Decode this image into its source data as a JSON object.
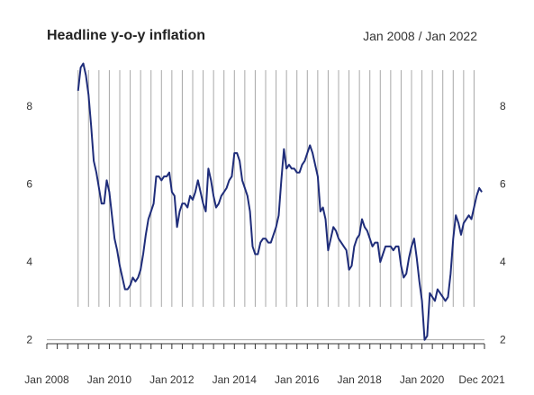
{
  "chart_data": {
    "type": "line",
    "title": "Headline y-o-y inflation",
    "subtitle": "Jan 2008 / Jan 2022",
    "xlabel": "",
    "ylabel": "",
    "x_tick_labels": [
      "Jan 2008",
      "Jan 2010",
      "Jan 2012",
      "Jan 2014",
      "Jan 2016",
      "Jan 2018",
      "Jan 2020",
      "Dec 2021"
    ],
    "x_tick_dates": [
      "2008-01",
      "2010-01",
      "2012-01",
      "2014-01",
      "2016-01",
      "2018-01",
      "2020-01",
      "2021-12"
    ],
    "xlim": [
      "2008-01",
      "2022-01"
    ],
    "ylim": [
      1.9,
      9.3
    ],
    "yticks": [
      2,
      4,
      6,
      8
    ],
    "y_tick_labels": [
      "2",
      "4",
      "6",
      "8"
    ],
    "right_axis_ticks": true,
    "grid": "vertical lines at monthly intervals from Jan 2009, horizontal line at 2",
    "line_color": "#1f2d7a",
    "series": [
      {
        "x": [
          "2009-01",
          "2009-02",
          "2009-03",
          "2009-04",
          "2009-05",
          "2009-06",
          "2009-07",
          "2009-08",
          "2009-09",
          "2009-10",
          "2009-11",
          "2009-12",
          "2010-01",
          "2010-02",
          "2010-03",
          "2010-04",
          "2010-05",
          "2010-06",
          "2010-07",
          "2010-08",
          "2010-09",
          "2010-10",
          "2010-11",
          "2010-12",
          "2011-01",
          "2011-02",
          "2011-03",
          "2011-04",
          "2011-05",
          "2011-06",
          "2011-07",
          "2011-08",
          "2011-09",
          "2011-10",
          "2011-11",
          "2011-12",
          "2012-01",
          "2012-02",
          "2012-03",
          "2012-04",
          "2012-05",
          "2012-06",
          "2012-07",
          "2012-08",
          "2012-09",
          "2012-10",
          "2012-11",
          "2012-12",
          "2013-01",
          "2013-02",
          "2013-03",
          "2013-04",
          "2013-05",
          "2013-06",
          "2013-07",
          "2013-08",
          "2013-09",
          "2013-10",
          "2013-11",
          "2013-12",
          "2014-01",
          "2014-02",
          "2014-03",
          "2014-04",
          "2014-05",
          "2014-06",
          "2014-07",
          "2014-08",
          "2014-09",
          "2014-10",
          "2014-11",
          "2014-12",
          "2015-01",
          "2015-02",
          "2015-03",
          "2015-04",
          "2015-05",
          "2015-06",
          "2015-07",
          "2015-08",
          "2015-09",
          "2015-10",
          "2015-11",
          "2015-12",
          "2016-01",
          "2016-02",
          "2016-03",
          "2016-04",
          "2016-05",
          "2016-06",
          "2016-07",
          "2016-08",
          "2016-09",
          "2016-10",
          "2016-11",
          "2016-12",
          "2017-01",
          "2017-02",
          "2017-03",
          "2017-04",
          "2017-05",
          "2017-06",
          "2017-07",
          "2017-08",
          "2017-09",
          "2017-10",
          "2017-11",
          "2017-12",
          "2018-01",
          "2018-02",
          "2018-03",
          "2018-04",
          "2018-05",
          "2018-06",
          "2018-07",
          "2018-08",
          "2018-09",
          "2018-10",
          "2018-11",
          "2018-12",
          "2019-01",
          "2019-02",
          "2019-03",
          "2019-04",
          "2019-05",
          "2019-06",
          "2019-07",
          "2019-08",
          "2019-09",
          "2019-10",
          "2019-11",
          "2019-12",
          "2020-01",
          "2020-02",
          "2020-03",
          "2020-04",
          "2020-05",
          "2020-06",
          "2020-07",
          "2020-08",
          "2020-09",
          "2020-10",
          "2020-11",
          "2020-12",
          "2021-01",
          "2021-02",
          "2021-03",
          "2021-04",
          "2021-05",
          "2021-06",
          "2021-07",
          "2021-08",
          "2021-09",
          "2021-10",
          "2021-11",
          "2021-12"
        ],
        "values": [
          8.4,
          9.0,
          9.1,
          8.8,
          8.3,
          7.5,
          6.6,
          6.3,
          5.9,
          5.5,
          5.5,
          6.1,
          5.8,
          5.2,
          4.6,
          4.3,
          3.9,
          3.6,
          3.3,
          3.3,
          3.4,
          3.6,
          3.5,
          3.6,
          3.8,
          4.2,
          4.7,
          5.1,
          5.3,
          5.5,
          6.2,
          6.2,
          6.1,
          6.2,
          6.2,
          6.3,
          5.8,
          5.7,
          4.9,
          5.3,
          5.5,
          5.5,
          5.4,
          5.7,
          5.6,
          5.8,
          6.1,
          5.8,
          5.5,
          5.3,
          6.4,
          6.1,
          5.7,
          5.4,
          5.5,
          5.7,
          5.8,
          5.9,
          6.1,
          6.2,
          6.8,
          6.8,
          6.6,
          6.1,
          5.9,
          5.7,
          5.3,
          4.4,
          4.2,
          4.2,
          4.5,
          4.6,
          4.6,
          4.5,
          4.5,
          4.7,
          4.9,
          5.2,
          6.1,
          6.9,
          6.4,
          6.5,
          6.4,
          6.4,
          6.3,
          6.3,
          6.5,
          6.6,
          6.8,
          7.0,
          6.8,
          6.5,
          6.2,
          5.3,
          5.4,
          5.1,
          4.3,
          4.6,
          4.9,
          4.8,
          4.6,
          4.5,
          4.4,
          4.3,
          3.8,
          3.9,
          4.4,
          4.6,
          4.7,
          5.1,
          4.9,
          4.8,
          4.6,
          4.4,
          4.5,
          4.5,
          4.0,
          4.2,
          4.4,
          4.4,
          4.4,
          4.3,
          4.4,
          4.4,
          3.9,
          3.6,
          3.7,
          4.1,
          4.4,
          4.6,
          4.1,
          3.5,
          3.0,
          2.0,
          2.1,
          3.2,
          3.1,
          3.0,
          3.3,
          3.2,
          3.1,
          3.0,
          3.1,
          3.7,
          4.6,
          5.2,
          5.0,
          4.7,
          5.0,
          5.1,
          5.2,
          5.1,
          5.4,
          5.7,
          5.9,
          5.8
        ]
      }
    ]
  }
}
